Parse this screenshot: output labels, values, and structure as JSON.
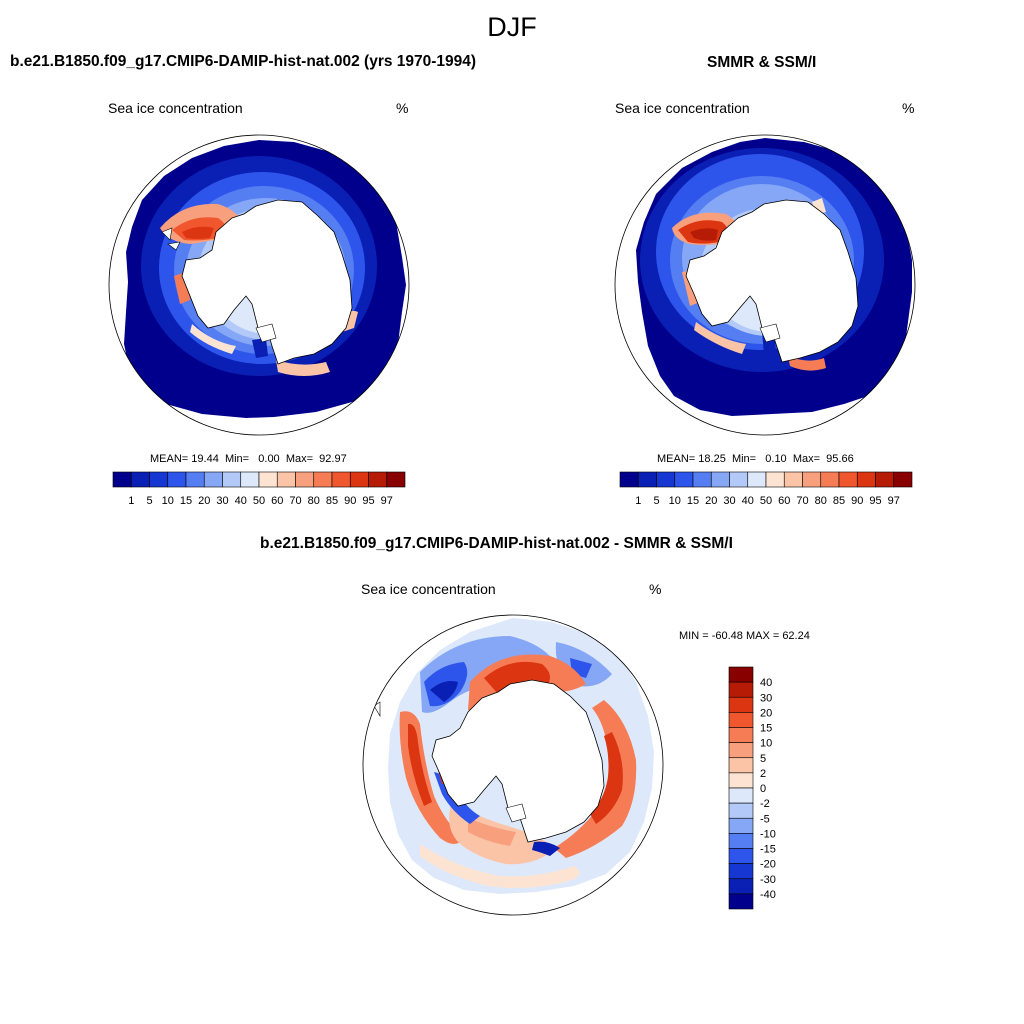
{
  "title": "DJF",
  "panels": [
    {
      "title": "b.e21.B1850.f09_g17.CMIP6-DAMIP-hist-nat.002 (yrs 1970-1994)",
      "left_label": "Sea ice concentration",
      "right_label": "%",
      "stats": {
        "mean_label": "MEAN=",
        "mean": "19.44",
        "min_label": "Min=",
        "min": "0.00",
        "max_label": "Max=",
        "max": "92.97"
      }
    },
    {
      "title": "SMMR & SSM/I",
      "left_label": "Sea ice concentration",
      "right_label": "%",
      "stats": {
        "mean_label": "MEAN=",
        "mean": "18.25",
        "min_label": "Min=",
        "min": "0.10",
        "max_label": "Max=",
        "max": "95.66"
      }
    },
    {
      "title": "b.e21.B1850.f09_g17.CMIP6-DAMIP-hist-nat.002 - SMMR & SSM/I",
      "left_label": "Sea ice concentration",
      "right_label": "%",
      "stats_line": "MIN = -60.48 MAX =  62.24"
    }
  ],
  "colorbar_concentration": {
    "labels": [
      "1",
      "5",
      "10",
      "15",
      "20",
      "30",
      "40",
      "50",
      "60",
      "70",
      "80",
      "85",
      "90",
      "95",
      "97"
    ],
    "colors": [
      "#00008c",
      "#0a1fb4",
      "#1637d2",
      "#2d55ec",
      "#557ef2",
      "#86a7f6",
      "#b3caf8",
      "#dde9fb",
      "#fde4d2",
      "#fbc4a7",
      "#f8a07d",
      "#f67c55",
      "#f1572e",
      "#dc3512",
      "#b51b05",
      "#880000"
    ]
  },
  "colorbar_difference": {
    "labels": [
      "40",
      "30",
      "20",
      "15",
      "10",
      "5",
      "2",
      "0",
      "-2",
      "-5",
      "-10",
      "-15",
      "-20",
      "-30",
      "-40"
    ],
    "colors": [
      "#880000",
      "#b51b05",
      "#dc3512",
      "#f1572e",
      "#f67c55",
      "#f8a07d",
      "#fbc4a7",
      "#fde4d2",
      "#dde9fb",
      "#b3caf8",
      "#86a7f6",
      "#557ef2",
      "#2d55ec",
      "#1637d2",
      "#0a1fb4",
      "#00008c"
    ]
  }
}
